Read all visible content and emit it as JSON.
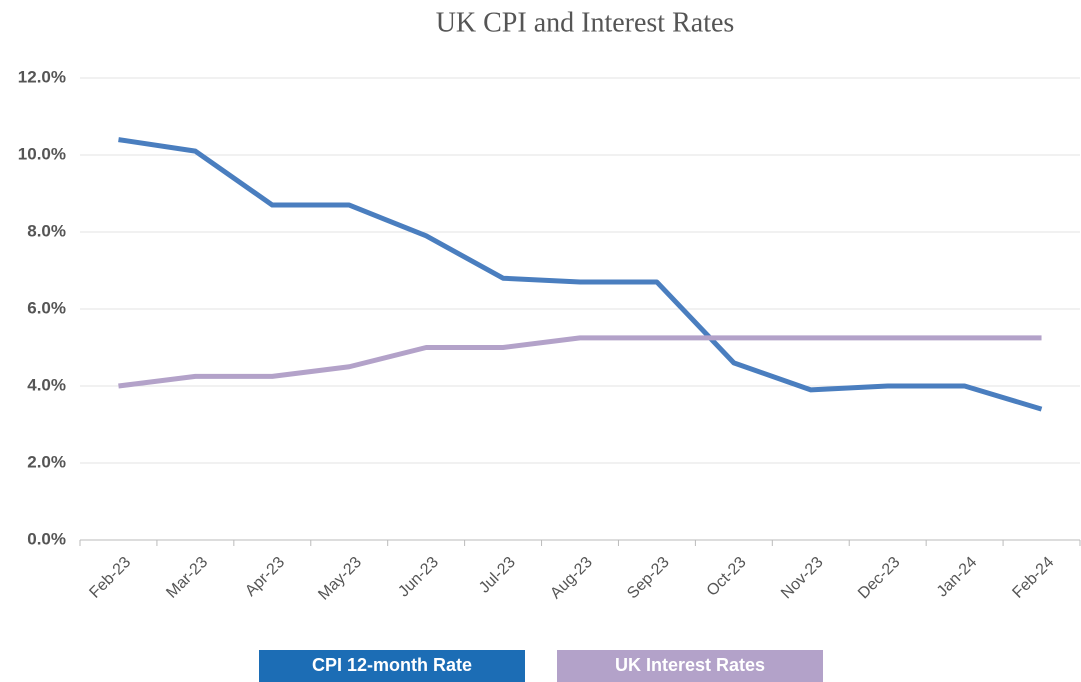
{
  "chart_data": {
    "type": "line",
    "title": "UK CPI and Interest Rates",
    "categories": [
      "Feb-23",
      "Mar-23",
      "Apr-23",
      "May-23",
      "Jun-23",
      "Jul-23",
      "Aug-23",
      "Sep-23",
      "Oct-23",
      "Nov-23",
      "Dec-23",
      "Jan-24",
      "Feb-24"
    ],
    "series": [
      {
        "name": "CPI 12-month Rate",
        "color": "#4a7ebf",
        "legend_color": "#1c6db5",
        "values": [
          10.4,
          10.1,
          8.7,
          8.7,
          7.9,
          6.8,
          6.7,
          6.7,
          4.6,
          3.9,
          4.0,
          4.0,
          3.4
        ]
      },
      {
        "name": "UK Interest Rates",
        "color": "#b3a2c9",
        "legend_color": "#b3a2c9",
        "values": [
          4.0,
          4.25,
          4.25,
          4.5,
          5.0,
          5.0,
          5.25,
          5.25,
          5.25,
          5.25,
          5.25,
          5.25,
          5.25
        ]
      }
    ],
    "ylim": [
      0,
      12
    ],
    "yticks": [
      {
        "value": 0,
        "label": "0.0%"
      },
      {
        "value": 2,
        "label": "2.0%"
      },
      {
        "value": 4,
        "label": "4.0%"
      },
      {
        "value": 6,
        "label": "6.0%"
      },
      {
        "value": 8,
        "label": "8.0%"
      },
      {
        "value": 10,
        "label": "10.0%"
      },
      {
        "value": 12,
        "label": "12.0%"
      }
    ],
    "grid": true,
    "legend": "bottom"
  }
}
